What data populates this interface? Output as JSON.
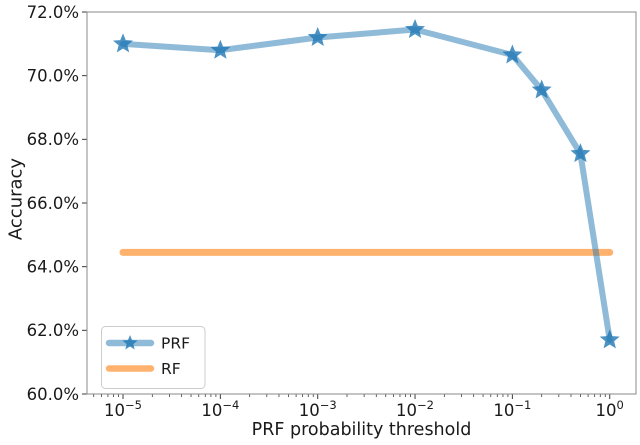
{
  "chart_data": {
    "type": "line",
    "title": "",
    "xlabel": "PRF probability threshold",
    "ylabel": "Accuracy",
    "x_scale": "log",
    "xlim_exp": [
      -5.37,
      0.27
    ],
    "ylim": [
      60,
      72
    ],
    "grid": false,
    "legend_position": "lower left",
    "y_ticks": [
      {
        "value": 60,
        "label": "60.0%"
      },
      {
        "value": 62,
        "label": "62.0%"
      },
      {
        "value": 64,
        "label": "64.0%"
      },
      {
        "value": 66,
        "label": "66.0%"
      },
      {
        "value": 68,
        "label": "68.0%"
      },
      {
        "value": 70,
        "label": "70.0%"
      },
      {
        "value": 72,
        "label": "72.0%"
      }
    ],
    "x_tick_exponents": [
      -5,
      -4,
      -3,
      -2,
      -1,
      0
    ],
    "series": [
      {
        "name": "PRF",
        "kind": "line+marker",
        "marker": "star",
        "base_color": "#1f77b4",
        "line_rgba": "rgba(31,119,180,0.5)",
        "marker_rgba": "rgba(31,119,180,0.8)",
        "x": [
          1e-05,
          0.0001,
          0.001,
          0.01,
          0.1,
          0.2,
          0.5,
          1.0
        ],
        "y_percent": [
          71.0,
          70.8,
          71.2,
          71.45,
          70.65,
          69.55,
          67.55,
          61.7
        ]
      },
      {
        "name": "RF",
        "kind": "hline",
        "marker": "none",
        "base_color": "#ff7f0e",
        "line_rgba": "rgba(255,127,14,0.6)",
        "x": [
          1e-05,
          1.0
        ],
        "y_percent": [
          64.45,
          64.45
        ]
      }
    ],
    "legend": {
      "entries": [
        {
          "label": "PRF",
          "series": "PRF"
        },
        {
          "label": "RF",
          "series": "RF"
        }
      ]
    },
    "colors": {
      "spine": "#8a8a8a",
      "tick": "#3a3a3a",
      "text": "#1a1a1a",
      "legend_border": "#cccccc",
      "background": "#ffffff"
    }
  }
}
